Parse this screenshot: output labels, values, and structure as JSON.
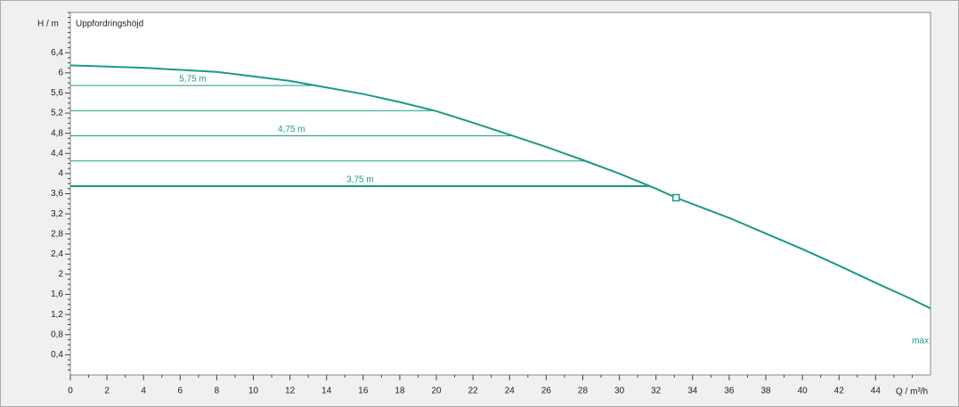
{
  "chart_data": {
    "type": "line",
    "y_label": "H / m",
    "subtitle": "Uppfordringshöjd",
    "x_label": "Q / m³/h",
    "curve_label": "max",
    "series": [
      {
        "name": "max",
        "color": "#1a9a88",
        "x": [
          0,
          4,
          8,
          10,
          12,
          14,
          16,
          18,
          20,
          22,
          24,
          26,
          28,
          30,
          32,
          33.1,
          36,
          38,
          40,
          42,
          44,
          46,
          47
        ],
        "values": [
          6.15,
          6.1,
          6.02,
          5.93,
          5.84,
          5.71,
          5.58,
          5.42,
          5.24,
          5.01,
          4.77,
          4.53,
          4.27,
          4.0,
          3.7,
          3.52,
          3.12,
          2.81,
          2.5,
          2.17,
          1.83,
          1.5,
          1.32
        ]
      }
    ],
    "operating_point": {
      "x": 33.1,
      "y": 3.52
    },
    "levels": {
      "values": [
        5.75,
        5.25,
        4.75,
        4.25,
        3.75
      ],
      "value_labels": [
        "5,75 m",
        null,
        "4,75 m",
        null,
        "3,75 m"
      ]
    },
    "xlim": [
      0,
      47
    ],
    "ylim": [
      0,
      7.2
    ],
    "xticks": [
      0,
      2,
      4,
      6,
      8,
      10,
      12,
      14,
      16,
      18,
      20,
      22,
      24,
      26,
      28,
      30,
      32,
      34,
      36,
      38,
      40,
      42,
      44
    ],
    "yticks": [
      {
        "value": 0.4,
        "label": "0,4"
      },
      {
        "value": 0.8,
        "label": "0,8"
      },
      {
        "value": 1.2,
        "label": "1,2"
      },
      {
        "value": 1.6,
        "label": "1,6"
      },
      2,
      {
        "value": 2.4,
        "label": "2,4"
      },
      {
        "value": 2.8,
        "label": "2,8"
      },
      {
        "value": 3.2,
        "label": "3,2"
      },
      {
        "value": 3.6,
        "label": "3,6"
      },
      4,
      {
        "value": 4.4,
        "label": "4,4"
      },
      {
        "value": 4.8,
        "label": "4,8"
      },
      {
        "value": 5.2,
        "label": "5,2"
      },
      {
        "value": 5.6,
        "label": "5,6"
      },
      6,
      {
        "value": 6.4,
        "label": "6,4"
      }
    ],
    "grid": false
  }
}
